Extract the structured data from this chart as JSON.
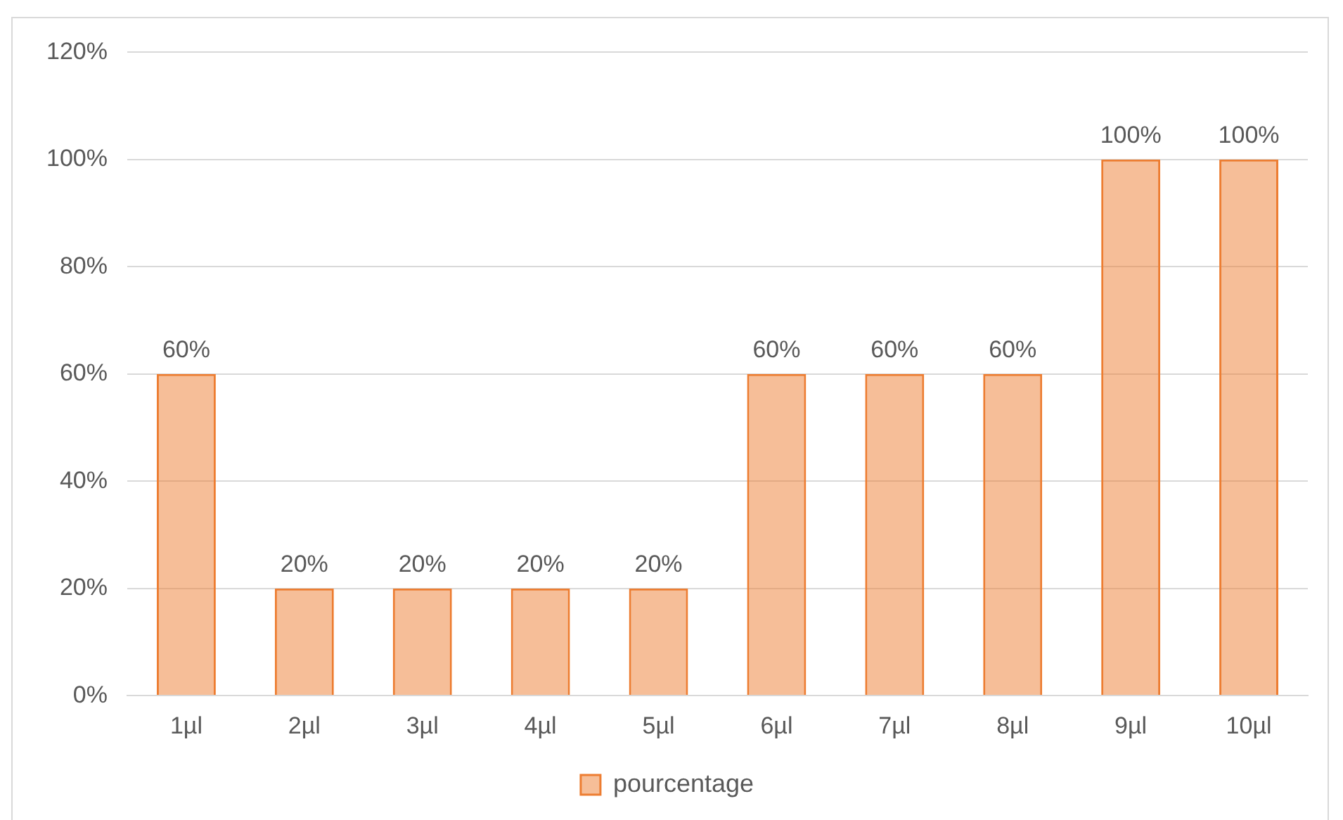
{
  "chart_data": {
    "type": "bar",
    "categories": [
      "1µl",
      "2µl",
      "3µl",
      "4µl",
      "5µl",
      "6µl",
      "7µl",
      "8µl",
      "9µl",
      "10µl"
    ],
    "series": [
      {
        "name": "pourcentage",
        "color": "#ed7d31",
        "values": [
          60,
          20,
          20,
          20,
          20,
          60,
          60,
          60,
          100,
          100
        ],
        "value_labels": [
          "60%",
          "20%",
          "20%",
          "20%",
          "20%",
          "60%",
          "60%",
          "60%",
          "100%",
          "100%"
        ]
      }
    ],
    "ylim": [
      0,
      120
    ],
    "yticks": [
      {
        "value": 0,
        "label": "0%"
      },
      {
        "value": 20,
        "label": "20%"
      },
      {
        "value": 40,
        "label": "40%"
      },
      {
        "value": 60,
        "label": "60%"
      },
      {
        "value": 80,
        "label": "80%"
      },
      {
        "value": 100,
        "label": "100%"
      },
      {
        "value": 120,
        "label": "120%"
      }
    ],
    "grid": "y",
    "legend": "bottom"
  }
}
